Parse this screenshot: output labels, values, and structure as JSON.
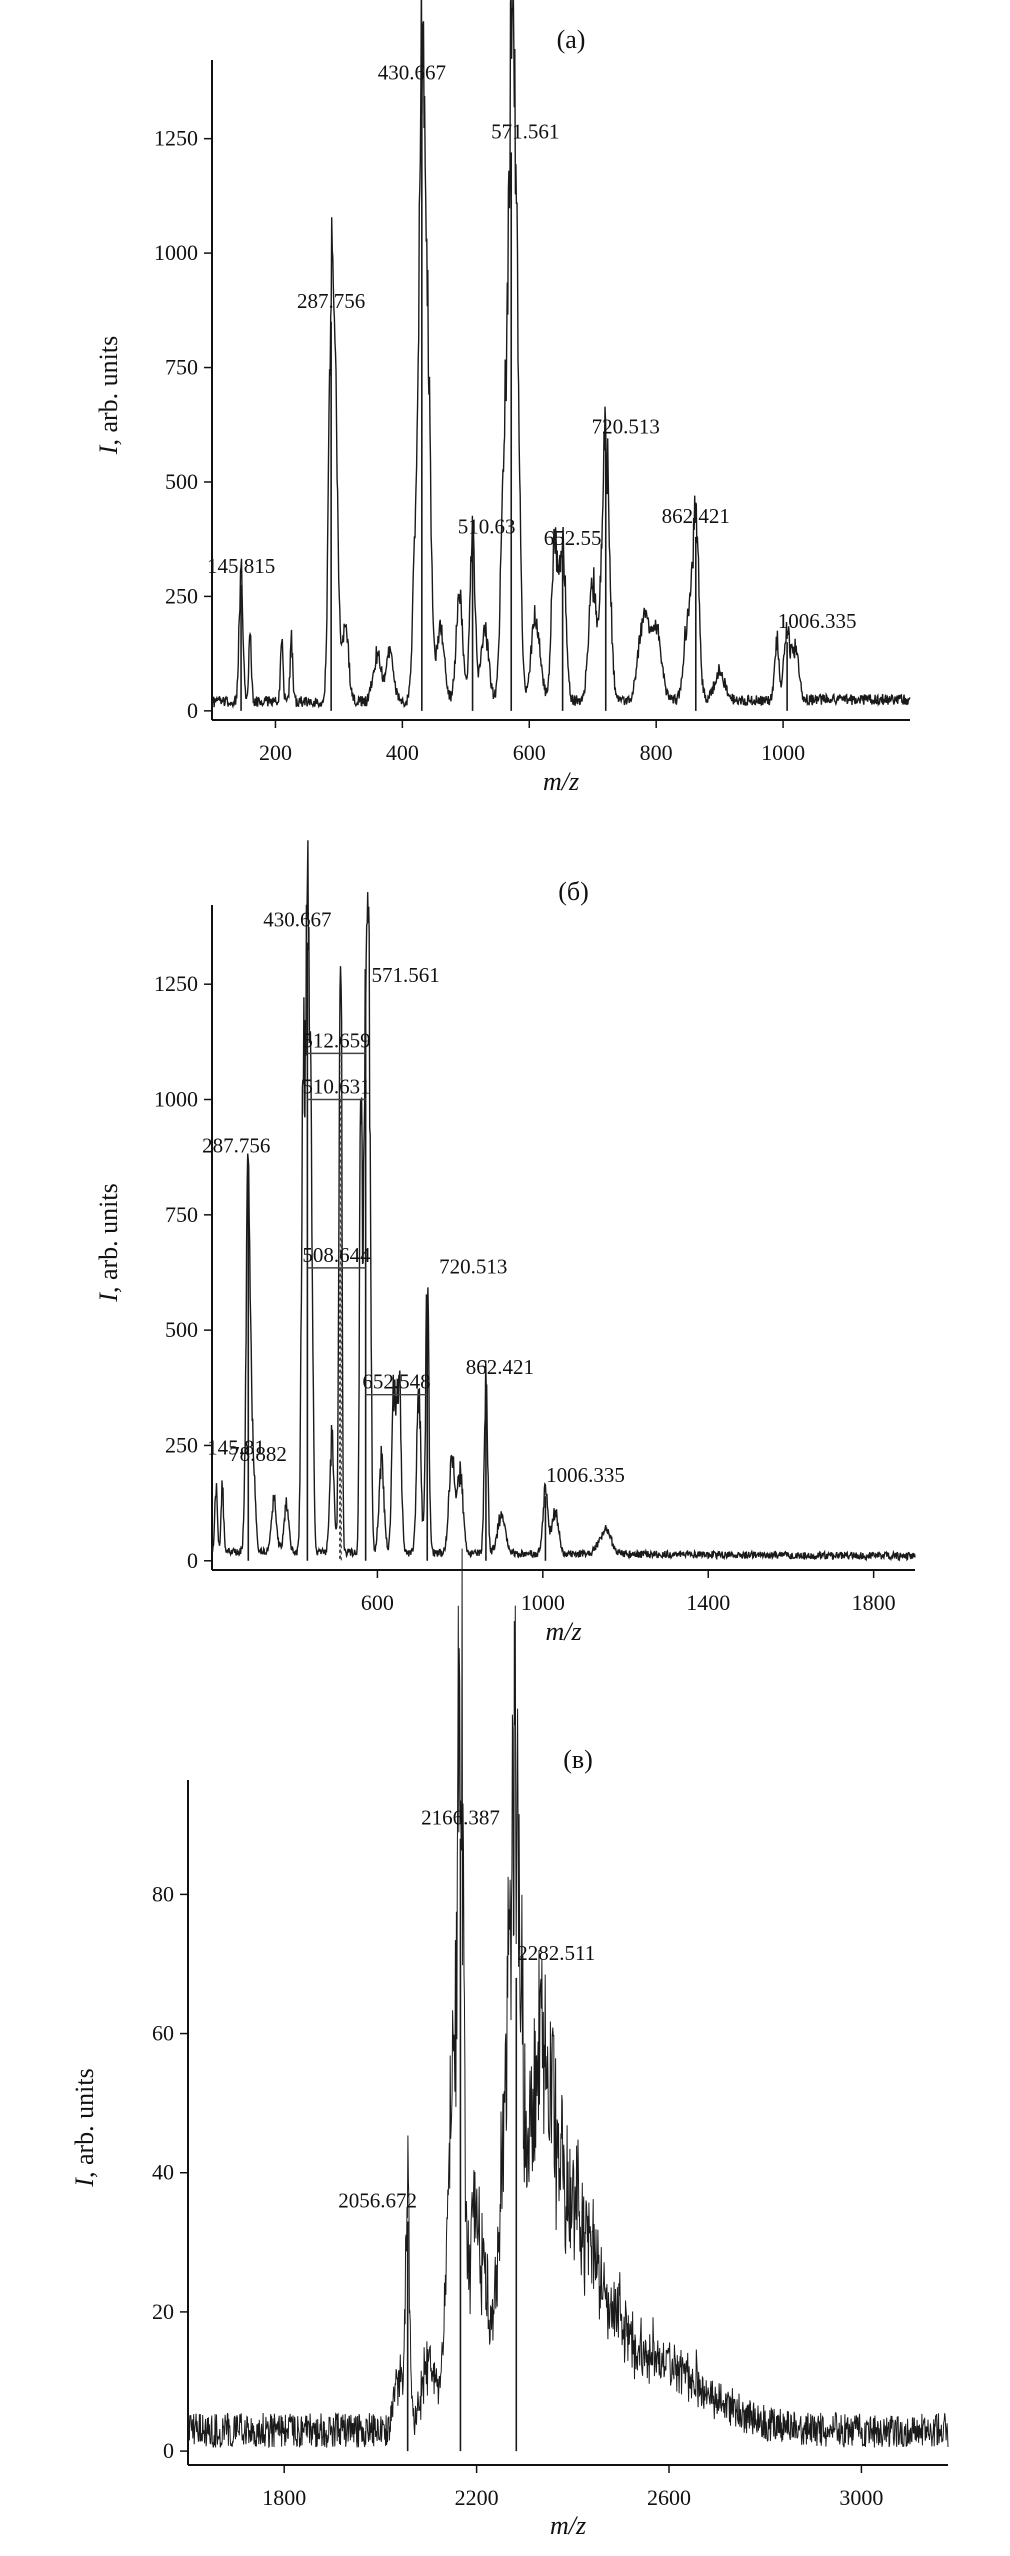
{
  "figure": {
    "colors": {
      "trace": "#1a1a1a",
      "axis": "#111111",
      "marker_lines": "#444444"
    },
    "grid": false,
    "legend": "none"
  },
  "chart_data": [
    {
      "type": "line",
      "panel_label": "(а)",
      "xlabel": "m/z",
      "ylabel": "I, arb. units",
      "xlim": [
        100,
        1200
      ],
      "ylim": [
        -20,
        1400
      ],
      "x_ticks": [
        200,
        400,
        600,
        800,
        1000
      ],
      "y_ticks": [
        0,
        250,
        500,
        750,
        1000,
        1250
      ],
      "baseline": {
        "start": 20,
        "end": 25,
        "noise": 12
      },
      "peaks": [
        {
          "x": 145.815,
          "y": 275,
          "w": 3,
          "label": "145.815"
        },
        {
          "x": 160,
          "y": 150,
          "w": 2
        },
        {
          "x": 210,
          "y": 140,
          "w": 2
        },
        {
          "x": 225,
          "y": 135,
          "w": 2
        },
        {
          "x": 287.756,
          "y": 850,
          "w": 4,
          "label": "287.756"
        },
        {
          "x": 295,
          "y": 560,
          "w": 4
        },
        {
          "x": 310,
          "y": 170,
          "w": 5
        },
        {
          "x": 360,
          "y": 100,
          "w": 6
        },
        {
          "x": 380,
          "y": 110,
          "w": 6
        },
        {
          "x": 420,
          "y": 300,
          "w": 4
        },
        {
          "x": 430.667,
          "y": 1340,
          "w": 4.5,
          "label": "430.667"
        },
        {
          "x": 440,
          "y": 700,
          "w": 5
        },
        {
          "x": 460,
          "y": 160,
          "w": 6
        },
        {
          "x": 490,
          "y": 240,
          "w": 5
        },
        {
          "x": 510.63,
          "y": 370,
          "w": 4,
          "label": "510.63"
        },
        {
          "x": 530,
          "y": 160,
          "w": 6
        },
        {
          "x": 560,
          "y": 500,
          "w": 5
        },
        {
          "x": 571.561,
          "y": 1220,
          "w": 5,
          "label": "571.561"
        },
        {
          "x": 580,
          "y": 800,
          "w": 5
        },
        {
          "x": 610,
          "y": 180,
          "w": 7
        },
        {
          "x": 640,
          "y": 320,
          "w": 5
        },
        {
          "x": 652.55,
          "y": 340,
          "w": 5,
          "label": "652.55"
        },
        {
          "x": 700,
          "y": 260,
          "w": 6
        },
        {
          "x": 720.513,
          "y": 575,
          "w": 6,
          "label": "720.513"
        },
        {
          "x": 780,
          "y": 180,
          "w": 8
        },
        {
          "x": 800,
          "y": 150,
          "w": 8
        },
        {
          "x": 850,
          "y": 180,
          "w": 6
        },
        {
          "x": 862.421,
          "y": 380,
          "w": 5,
          "label": "862.421"
        },
        {
          "x": 900,
          "y": 60,
          "w": 8
        },
        {
          "x": 990,
          "y": 140,
          "w": 3
        },
        {
          "x": 1006.335,
          "y": 150,
          "w": 5,
          "label": "1006.335"
        },
        {
          "x": 1020,
          "y": 110,
          "w": 5
        }
      ]
    },
    {
      "type": "line",
      "panel_label": "(б)",
      "xlabel": "m/z",
      "ylabel": "I, arb. units",
      "xlim": [
        200,
        1900
      ],
      "ylim": [
        -20,
        1400
      ],
      "x_ticks": [
        600,
        1000,
        1400,
        1800
      ],
      "y_ticks": [
        0,
        250,
        500,
        750,
        1000,
        1250
      ],
      "baseline": {
        "start": 20,
        "end": 10,
        "noise": 8
      },
      "peaks": [
        {
          "x": 78.882,
          "y": 195,
          "w": 3,
          "label": "78.882"
        },
        {
          "x": 145.81,
          "y": 165,
          "w": 3,
          "label": "145.81"
        },
        {
          "x": 160,
          "y": 180,
          "w": 3
        },
        {
          "x": 210,
          "y": 145,
          "w": 3
        },
        {
          "x": 225,
          "y": 140,
          "w": 3
        },
        {
          "x": 287.756,
          "y": 850,
          "w": 5,
          "label": "287.756"
        },
        {
          "x": 300,
          "y": 180,
          "w": 5
        },
        {
          "x": 350,
          "y": 110,
          "w": 6
        },
        {
          "x": 380,
          "y": 100,
          "w": 6
        },
        {
          "x": 420,
          "y": 980,
          "w": 4
        },
        {
          "x": 430.667,
          "y": 1340,
          "w": 4.5,
          "label": "430.667"
        },
        {
          "x": 440,
          "y": 800,
          "w": 4
        },
        {
          "x": 490,
          "y": 250,
          "w": 5
        },
        {
          "x": 508.644,
          "y": 620,
          "w": 3
        },
        {
          "x": 512,
          "y": 1000,
          "w": 2.5
        },
        {
          "x": 560,
          "y": 990,
          "w": 3
        },
        {
          "x": 571.561,
          "y": 1220,
          "w": 4.5,
          "label": "571.561"
        },
        {
          "x": 580,
          "y": 1000,
          "w": 4
        },
        {
          "x": 610,
          "y": 200,
          "w": 6
        },
        {
          "x": 640,
          "y": 350,
          "w": 5
        },
        {
          "x": 652.548,
          "y": 360,
          "w": 5
        },
        {
          "x": 700,
          "y": 350,
          "w": 5
        },
        {
          "x": 720.513,
          "y": 575,
          "w": 4,
          "label": "720.513"
        },
        {
          "x": 780,
          "y": 200,
          "w": 7
        },
        {
          "x": 800,
          "y": 170,
          "w": 7
        },
        {
          "x": 862.421,
          "y": 370,
          "w": 4,
          "label": "862.421"
        },
        {
          "x": 900,
          "y": 80,
          "w": 10
        },
        {
          "x": 1006.335,
          "y": 140,
          "w": 6,
          "label": "1006.335"
        },
        {
          "x": 1030,
          "y": 90,
          "w": 8
        },
        {
          "x": 1150,
          "y": 50,
          "w": 15
        }
      ],
      "bracket_labels": [
        {
          "label": "512.659",
          "x1": 430.667,
          "x2": 571.561,
          "y": 1100,
          "dashed_x": 512.659
        },
        {
          "label": "510.631",
          "x1": 430.667,
          "x2": 571.561,
          "y": 1000,
          "dashed_x": 510.631
        },
        {
          "label": "508.644",
          "x1": 430.667,
          "x2": 571.561,
          "y": 635,
          "dashed_x": 508.644
        },
        {
          "label": "652.548",
          "x1": 571.561,
          "x2": 720.513,
          "y": 360,
          "dashed_x": null
        }
      ]
    },
    {
      "type": "line",
      "panel_label": "(в)",
      "xlabel": "m/z",
      "ylabel": "I, arb. units",
      "xlim": [
        1600,
        3180
      ],
      "ylim": [
        -2,
        95
      ],
      "x_ticks": [
        1800,
        2200,
        2600,
        3000
      ],
      "y_ticks": [
        0,
        20,
        40,
        60,
        80
      ],
      "baseline": {
        "start": 3,
        "end": 3,
        "noise": 2.5
      },
      "peaks": [
        {
          "x": 2040,
          "y": 8,
          "w": 10
        },
        {
          "x": 2056.672,
          "y": 33,
          "w": 4,
          "label": "2056.672"
        },
        {
          "x": 2100,
          "y": 10,
          "w": 15
        },
        {
          "x": 2150,
          "y": 45,
          "w": 12
        },
        {
          "x": 2166.387,
          "y": 88,
          "w": 6,
          "label": "2166.387"
        },
        {
          "x": 2200,
          "y": 30,
          "w": 20
        },
        {
          "x": 2260,
          "y": 40,
          "w": 15
        },
        {
          "x": 2282.511,
          "y": 68,
          "w": 10,
          "label": "2282.511"
        },
        {
          "x": 2330,
          "y": 40,
          "w": 30
        },
        {
          "x": 2400,
          "y": 25,
          "w": 60
        },
        {
          "x": 2550,
          "y": 10,
          "w": 120
        }
      ]
    }
  ]
}
